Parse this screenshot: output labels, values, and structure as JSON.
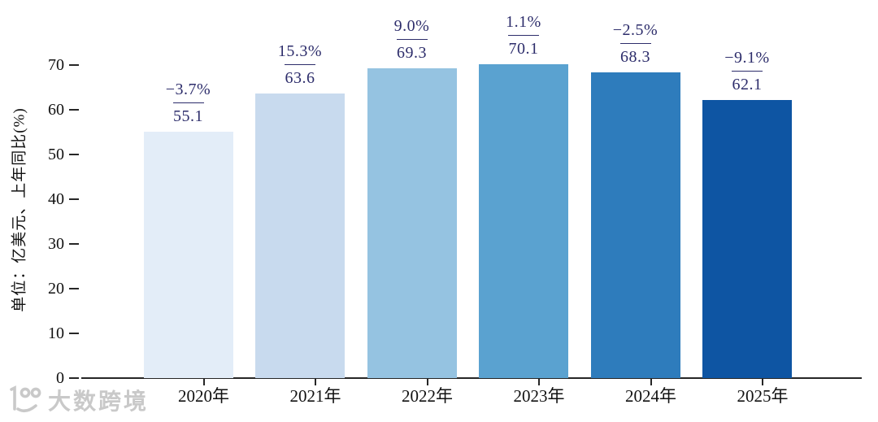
{
  "chart_data": {
    "type": "bar",
    "title": "",
    "categories": [
      "2020年",
      "2021年",
      "2022年",
      "2023年",
      "2024年",
      "2025年"
    ],
    "values": [
      55.1,
      63.6,
      69.3,
      70.1,
      68.3,
      62.1
    ],
    "value_labels": [
      "55.1",
      "63.6",
      "69.3",
      "70.1",
      "68.3",
      "62.1"
    ],
    "growth_labels": [
      "−3.7%",
      "15.3%",
      "9.0%",
      "1.1%",
      "−2.5%",
      "−9.1%"
    ],
    "bar_colors": [
      "#e3edf8",
      "#c8daee",
      "#95c3e1",
      "#5aa2d0",
      "#2e7cbc",
      "#0e55a3"
    ],
    "xlabel": "",
    "ylabel": "单位：亿美元、上年同比(%)",
    "yticks": [
      0,
      10,
      20,
      30,
      40,
      50,
      60,
      70
    ],
    "ylim": [
      0,
      75
    ],
    "grid": false,
    "legend": null,
    "annotation_color": "#2d2d6b",
    "axis_color": "#262626"
  },
  "watermark": {
    "text": "大数跨境"
  }
}
